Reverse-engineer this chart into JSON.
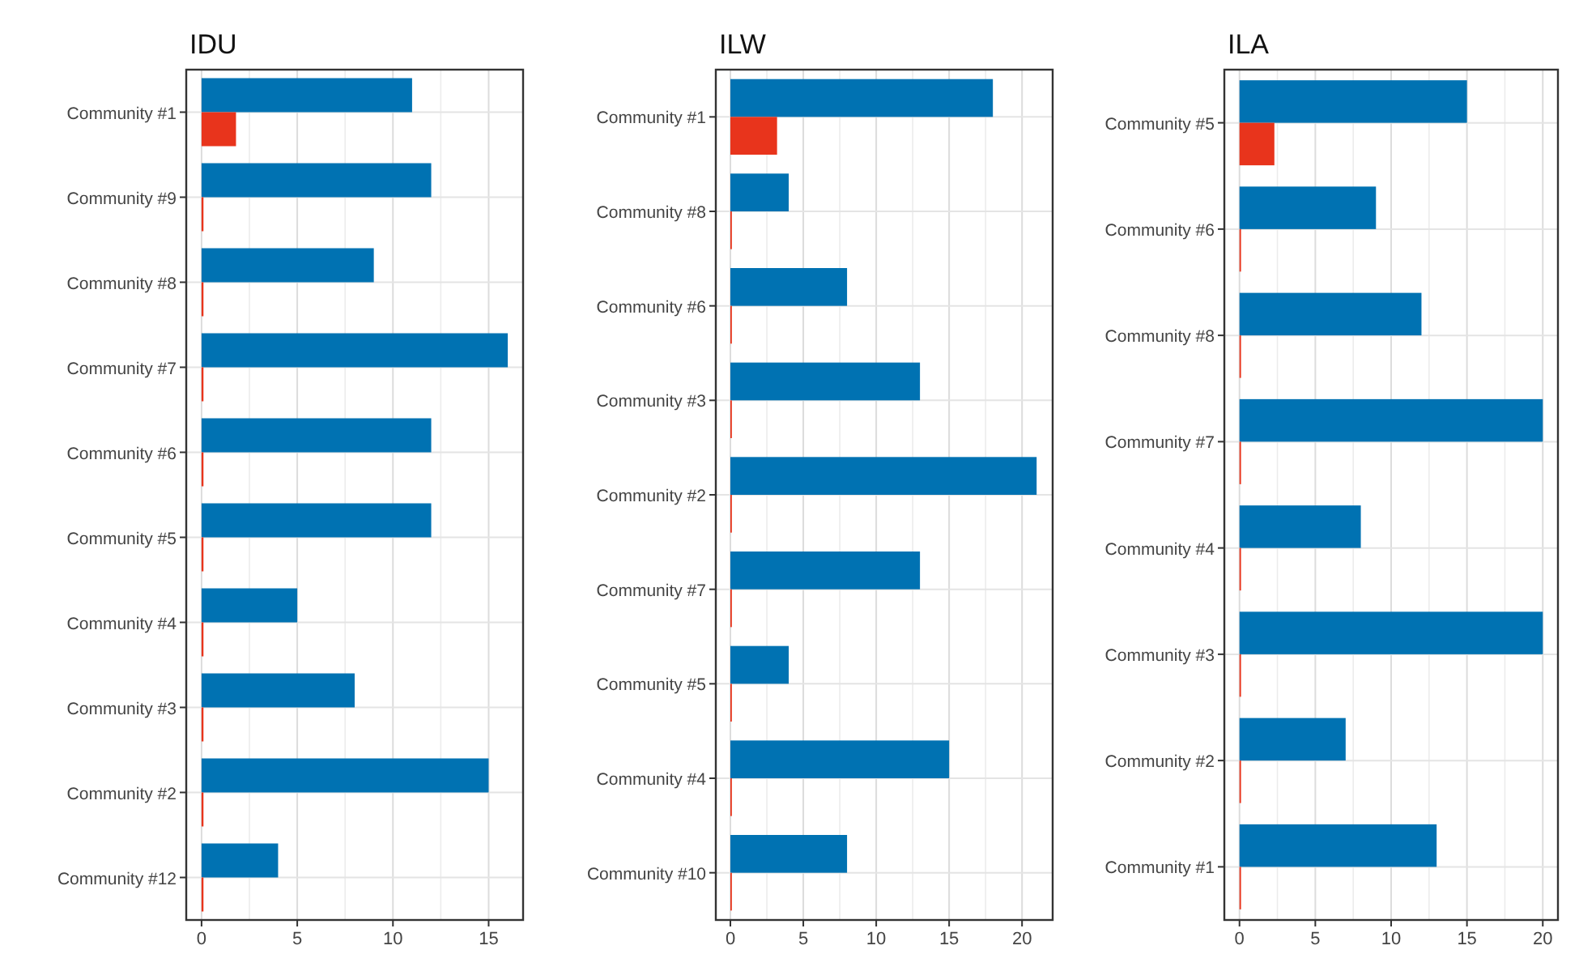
{
  "chart_data": [
    {
      "type": "bar",
      "orientation": "horizontal",
      "title": "IDU",
      "categories": [
        "Community #1",
        "Community #9",
        "Community #8",
        "Community #7",
        "Community #6",
        "Community #5",
        "Community #4",
        "Community #3",
        "Community #2",
        "Community #12"
      ],
      "series": [
        {
          "color": "#0072b2",
          "values": [
            11,
            12,
            9,
            16,
            12,
            12,
            5,
            8,
            15,
            4
          ]
        },
        {
          "color": "#e8341c",
          "values": [
            1.8,
            0.1,
            0.1,
            0.1,
            0.1,
            0.1,
            0.1,
            0.1,
            0.1,
            0.1
          ]
        }
      ],
      "xlim": [
        -0.8,
        16.8
      ],
      "xticks": [
        0,
        5,
        10,
        15
      ],
      "grid": true
    },
    {
      "type": "bar",
      "orientation": "horizontal",
      "title": "ILW",
      "categories": [
        "Community #1",
        "Community #8",
        "Community #6",
        "Community #3",
        "Community #2",
        "Community #7",
        "Community #5",
        "Community #4",
        "Community #10"
      ],
      "series": [
        {
          "color": "#0072b2",
          "values": [
            18,
            4,
            8,
            13,
            21,
            13,
            4,
            15,
            8
          ]
        },
        {
          "color": "#e8341c",
          "values": [
            3.2,
            0.1,
            0.1,
            0.1,
            0.1,
            0.1,
            0.1,
            0.1,
            0.1
          ]
        }
      ],
      "xlim": [
        -1,
        22.1
      ],
      "xticks": [
        0,
        5,
        10,
        15,
        20
      ],
      "grid": true
    },
    {
      "type": "bar",
      "orientation": "horizontal",
      "title": "ILA",
      "categories": [
        "Community #5",
        "Community #6",
        "Community #8",
        "Community #7",
        "Community #4",
        "Community #3",
        "Community #2",
        "Community #1"
      ],
      "series": [
        {
          "color": "#0072b2",
          "values": [
            15,
            9,
            12,
            20,
            8,
            20,
            7,
            13
          ]
        },
        {
          "color": "#e8341c",
          "values": [
            2.3,
            0.1,
            0.1,
            0.1,
            0.1,
            0.1,
            0.1,
            0.1
          ]
        }
      ],
      "xlim": [
        -1,
        21
      ],
      "xticks": [
        0,
        5,
        10,
        15,
        20
      ],
      "grid": true
    }
  ]
}
